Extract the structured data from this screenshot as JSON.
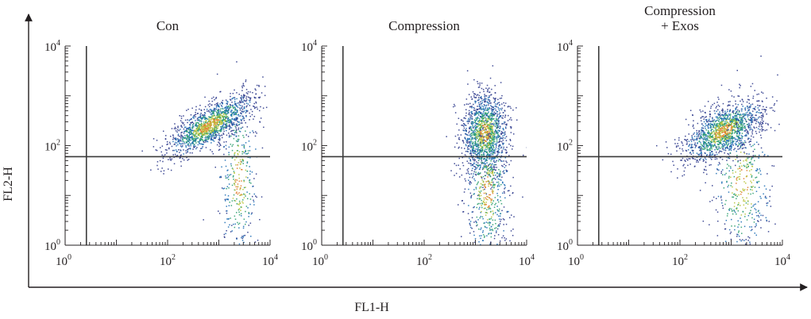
{
  "figure": {
    "x_axis_label": "FL1-H",
    "y_axis_label": "FL2-H",
    "axis_color": "#231f20",
    "density_colors": [
      "#2d3a8c",
      "#1f6fb5",
      "#2b9e6e",
      "#b8c33a",
      "#e07a2a"
    ]
  },
  "chart_data": [
    {
      "type": "scatter",
      "title": "Con",
      "xscale": "log",
      "yscale": "log",
      "xlim": [
        1,
        10000
      ],
      "ylim": [
        1,
        10000
      ],
      "xticks": [
        {
          "base": "10",
          "exp": "0"
        },
        {
          "base": "10",
          "exp": "2"
        },
        {
          "base": "10",
          "exp": "4"
        }
      ],
      "yticks": [
        {
          "base": "10",
          "exp": "0"
        },
        {
          "base": "10",
          "exp": "2"
        },
        {
          "base": "10",
          "exp": "4"
        }
      ],
      "gate": {
        "x": 2.6,
        "y": 60
      },
      "populations": [
        {
          "center": [
            650,
            260
          ],
          "spread": [
            0.42,
            0.2
          ],
          "tilt": 0.55,
          "n": 1400
        },
        {
          "center": [
            2400,
            22
          ],
          "spread": [
            0.2,
            0.85
          ],
          "tilt": 0.0,
          "n": 380
        }
      ],
      "grid": false
    },
    {
      "type": "scatter",
      "title": "Compression",
      "xscale": "log",
      "yscale": "log",
      "xlim": [
        1,
        10000
      ],
      "ylim": [
        1,
        10000
      ],
      "xticks": [
        {
          "base": "10",
          "exp": "0"
        },
        {
          "base": "10",
          "exp": "2"
        },
        {
          "base": "10",
          "exp": "4"
        }
      ],
      "yticks": [
        {
          "base": "10",
          "exp": "0"
        },
        {
          "base": "10",
          "exp": "2"
        },
        {
          "base": "10",
          "exp": "4"
        }
      ],
      "gate": {
        "x": 2.6,
        "y": 60
      },
      "populations": [
        {
          "center": [
            1500,
            180
          ],
          "spread": [
            0.22,
            0.4
          ],
          "tilt": 0.1,
          "n": 1300
        },
        {
          "center": [
            1700,
            12
          ],
          "spread": [
            0.22,
            0.75
          ],
          "tilt": 0.0,
          "n": 600
        }
      ],
      "grid": false
    },
    {
      "type": "scatter",
      "title": "Compression\n+ Exos",
      "xscale": "log",
      "yscale": "log",
      "xlim": [
        1,
        10000
      ],
      "ylim": [
        1,
        10000
      ],
      "xticks": [
        {
          "base": "10",
          "exp": "0"
        },
        {
          "base": "10",
          "exp": "2"
        },
        {
          "base": "10",
          "exp": "4"
        }
      ],
      "yticks": [
        {
          "base": "10",
          "exp": "0"
        },
        {
          "base": "10",
          "exp": "2"
        },
        {
          "base": "10",
          "exp": "4"
        }
      ],
      "gate": {
        "x": 2.6,
        "y": 60
      },
      "populations": [
        {
          "center": [
            700,
            200
          ],
          "spread": [
            0.38,
            0.25
          ],
          "tilt": 0.45,
          "n": 1400
        },
        {
          "center": [
            1600,
            18
          ],
          "spread": [
            0.3,
            0.8
          ],
          "tilt": 0.0,
          "n": 450
        }
      ],
      "grid": false
    }
  ]
}
